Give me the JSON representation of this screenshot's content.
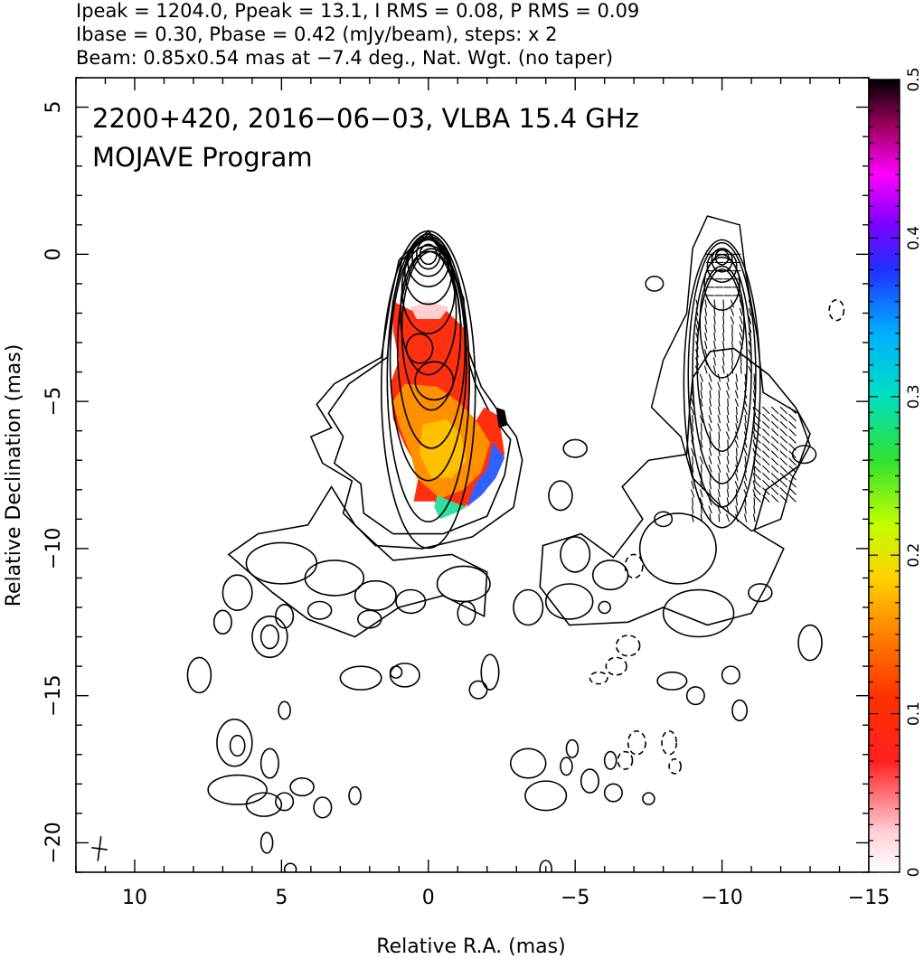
{
  "header": {
    "line1": "Ipeak = 1204.0, Ppeak = 13.1, I RMS = 0.08, P RMS = 0.09",
    "line2": "Ibase = 0.30, Pbase = 0.42 (mJy/beam), steps: x 2",
    "line3": "Beam: 0.85x0.54 mas at −7.4 deg., Nat. Wgt. (no taper)"
  },
  "annotation": {
    "line1": "2200+420, 2016−06−03, VLBA 15.4 GHz",
    "line2": "MOJAVE Program"
  },
  "chart_data": {
    "type": "heatmap",
    "xlabel": "Relative R.A. (mas)",
    "ylabel": "Relative Declination (mas)",
    "xlim": [
      12,
      -15
    ],
    "ylim": [
      -21,
      6
    ],
    "xticks": [
      10,
      5,
      0,
      -5,
      -10,
      -15
    ],
    "xtick_labels": [
      "10",
      "5",
      "0",
      "−5",
      "−10",
      "−15"
    ],
    "yticks": [
      5,
      0,
      -5,
      -10,
      -15,
      -20
    ],
    "ytick_labels": [
      "5",
      "0",
      "−5",
      "−10",
      "−15",
      "−20"
    ],
    "colorbar": {
      "range": [
        0,
        0.5
      ],
      "ticks": [
        0,
        0.1,
        0.2,
        0.3,
        0.4,
        0.5
      ],
      "tick_labels": [
        "0",
        "0.1",
        "0.2",
        "0.3",
        "0.4",
        "0.5"
      ]
    },
    "intensity_peak_mJy_per_beam": 1204.0,
    "polarized_peak_mJy_per_beam": 13.1,
    "contour_steps": "x 2",
    "left_panel": {
      "contour_center": [
        0,
        0
      ],
      "contour_levels_count": 11,
      "fractional_polarization_region": {
        "ra_range": [
          1.3,
          -2.6
        ],
        "dec_range": [
          -1.8,
          -9.0
        ]
      }
    },
    "right_panel": {
      "contour_center": [
        -10,
        0
      ],
      "evpa_region": {
        "ra_range": [
          -8.7,
          -12.7
        ],
        "dec_range": [
          0,
          -9.0
        ]
      }
    },
    "beam": {
      "position": [
        11.2,
        -20.2
      ],
      "major_mas": 0.85,
      "minor_mas": 0.54,
      "pa_deg": -7.4
    }
  }
}
